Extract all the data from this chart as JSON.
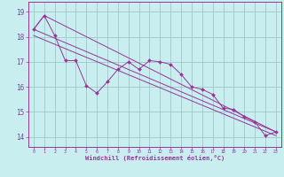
{
  "xlabel": "Windchill (Refroidissement éolien,°C)",
  "background_color": "#c8eef0",
  "grid_color": "#a0c8c8",
  "line_color": "#993399",
  "spine_color": "#993399",
  "x_ticks": [
    0,
    1,
    2,
    3,
    4,
    5,
    6,
    7,
    8,
    9,
    10,
    11,
    12,
    13,
    14,
    15,
    16,
    17,
    18,
    19,
    20,
    21,
    22,
    23
  ],
  "y_ticks": [
    14,
    15,
    16,
    17,
    18,
    19
  ],
  "ylim": [
    13.6,
    19.4
  ],
  "xlim": [
    -0.5,
    23.5
  ],
  "series1_x": [
    0,
    1,
    2,
    3,
    4,
    5,
    6,
    7,
    8,
    9,
    10,
    11,
    12,
    13,
    14,
    15,
    16,
    17,
    18,
    19,
    20,
    21,
    22,
    23
  ],
  "series1_y": [
    18.3,
    18.85,
    18.05,
    17.05,
    17.05,
    16.05,
    15.75,
    16.2,
    16.7,
    17.0,
    16.7,
    17.05,
    17.0,
    16.9,
    16.5,
    16.0,
    15.9,
    15.7,
    15.15,
    15.1,
    14.8,
    14.6,
    14.05,
    14.2
  ],
  "line1_x": [
    0,
    1,
    23
  ],
  "line1_y": [
    18.3,
    18.85,
    14.2
  ],
  "line2_x": [
    0,
    23
  ],
  "line2_y": [
    18.3,
    14.2
  ],
  "line3_x": [
    0,
    23
  ],
  "line3_y": [
    18.05,
    14.05
  ]
}
